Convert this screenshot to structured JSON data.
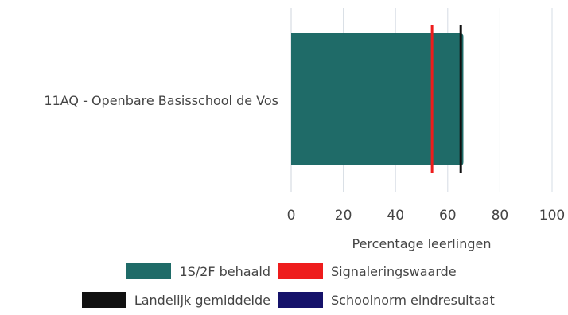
{
  "chart_data": {
    "type": "bar",
    "orientation": "horizontal",
    "categories": [
      "11AQ - Openbare Basisschool de Vos"
    ],
    "series": [
      {
        "name": "1S/2F behaald",
        "values": [
          66
        ],
        "color": "#1f6b68"
      }
    ],
    "reference_lines": [
      {
        "name": "Signaleringswaarde",
        "value": 54,
        "color": "#ee1c1c"
      },
      {
        "name": "Landelijk gemiddelde",
        "value": 65,
        "color": "#111111"
      },
      {
        "name": "Schoolnorm eindresultaat",
        "value": null,
        "color": "#15126a"
      }
    ],
    "xlabel": "Percentage leerlingen",
    "xlim": [
      0,
      100
    ],
    "xticks": [
      "0",
      "20",
      "40",
      "60",
      "80",
      "100"
    ],
    "grid": true,
    "legend_position": "bottom"
  }
}
